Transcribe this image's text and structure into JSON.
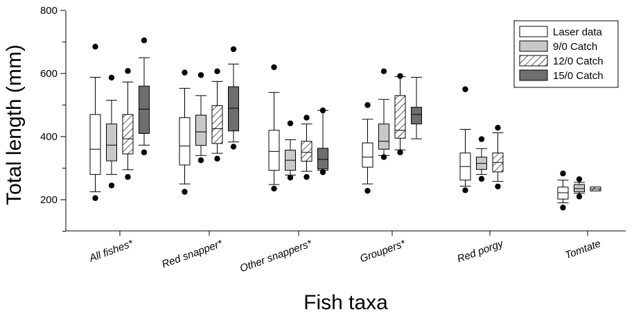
{
  "chart_data": {
    "type": "box",
    "title": "",
    "xlabel": "Fish taxa",
    "ylabel": "Total length (mm)",
    "ylim": [
      100,
      800
    ],
    "yticks": [
      200,
      400,
      600,
      800
    ],
    "grid": false,
    "legend_placement": "top-right",
    "categories": [
      "All fishes*",
      "Red snapper*",
      "Other snappers*",
      "Groupers*",
      "Red porgy",
      "Tomtate"
    ],
    "series": [
      {
        "name": "Laser data",
        "pattern": "white",
        "boxes": [
          {
            "outliers": [
              685,
              205
            ],
            "whisker_low": 225,
            "q1": 280,
            "median": 360,
            "q3": 470,
            "whisker_high": 588
          },
          {
            "outliers": [
              603,
              225
            ],
            "whisker_low": 250,
            "q1": 310,
            "median": 370,
            "q3": 460,
            "whisker_high": 553
          },
          {
            "outliers": [
              620,
              235
            ],
            "whisker_low": 248,
            "q1": 293,
            "median": 353,
            "q3": 420,
            "whisker_high": 540
          },
          {
            "outliers": [
              500,
              228
            ],
            "whisker_low": 250,
            "q1": 303,
            "median": 335,
            "q3": 380,
            "whisker_high": 455
          },
          {
            "outliers": [
              550,
              230
            ],
            "whisker_low": 243,
            "q1": 262,
            "median": 305,
            "q3": 348,
            "whisker_high": 423
          },
          {
            "outliers": [
              283,
              175
            ],
            "whisker_low": 190,
            "q1": 202,
            "median": 222,
            "q3": 240,
            "whisker_high": 262
          }
        ]
      },
      {
        "name": "9/0 Catch",
        "pattern": "lightgray",
        "boxes": [
          {
            "outliers": [
              587,
              245
            ],
            "whisker_low": 280,
            "q1": 323,
            "median": 373,
            "q3": 440,
            "whisker_high": 515
          },
          {
            "outliers": [
              595,
              325
            ],
            "whisker_low": 340,
            "q1": 372,
            "median": 415,
            "q3": 468,
            "whisker_high": 530
          },
          {
            "outliers": [
              442,
              270
            ],
            "whisker_low": 278,
            "q1": 293,
            "median": 325,
            "q3": 357,
            "whisker_high": 390
          },
          {
            "outliers": [
              607,
              335
            ],
            "whisker_low": 340,
            "q1": 360,
            "median": 385,
            "q3": 440,
            "whisker_high": 518
          },
          {
            "outliers": [
              392,
              266
            ],
            "whisker_low": 280,
            "q1": 296,
            "median": 315,
            "q3": 335,
            "whisker_high": 362
          },
          {
            "outliers": [
              265,
              210
            ],
            "whisker_low": 220,
            "q1": 225,
            "median": 235,
            "q3": 248,
            "whisker_high": 255
          }
        ]
      },
      {
        "name": "12/0 Catch",
        "pattern": "hatch",
        "boxes": [
          {
            "outliers": [
              608,
              272
            ],
            "whisker_low": 295,
            "q1": 345,
            "median": 393,
            "q3": 470,
            "whisker_high": 573
          },
          {
            "outliers": [
              607,
              330
            ],
            "whisker_low": 347,
            "q1": 378,
            "median": 425,
            "q3": 498,
            "whisker_high": 575
          },
          {
            "outliers": [
              460,
              272
            ],
            "whisker_low": 290,
            "q1": 322,
            "median": 350,
            "q3": 385,
            "whisker_high": 440
          },
          {
            "outliers": [
              592,
              350
            ],
            "whisker_low": 358,
            "q1": 395,
            "median": 420,
            "q3": 530,
            "whisker_high": 590
          },
          {
            "outliers": [
              428,
              242
            ],
            "whisker_low": 258,
            "q1": 288,
            "median": 318,
            "q3": 348,
            "whisker_high": 412
          },
          {
            "outliers": [],
            "whisker_low": 228,
            "q1": 228,
            "median": 234,
            "q3": 240,
            "whisker_high": 240
          }
        ]
      },
      {
        "name": "15/0 Catch",
        "pattern": "darkgray",
        "boxes": [
          {
            "outliers": [
              705,
              350
            ],
            "whisker_low": 373,
            "q1": 410,
            "median": 487,
            "q3": 560,
            "whisker_high": 650
          },
          {
            "outliers": [
              677,
              368
            ],
            "whisker_low": 383,
            "q1": 418,
            "median": 490,
            "q3": 558,
            "whisker_high": 630
          },
          {
            "outliers": [
              483,
              287
            ],
            "whisker_low": 293,
            "q1": 297,
            "median": 328,
            "q3": 363,
            "whisker_high": 483
          },
          {
            "outliers": [],
            "whisker_low": 393,
            "q1": 440,
            "median": 470,
            "q3": 493,
            "whisker_high": 588
          },
          null,
          null
        ]
      }
    ]
  },
  "colors": {
    "white": "#ffffff",
    "lightgray": "#c8c8c8",
    "darkgray": "#6e6e6e",
    "stroke": "#000000"
  }
}
